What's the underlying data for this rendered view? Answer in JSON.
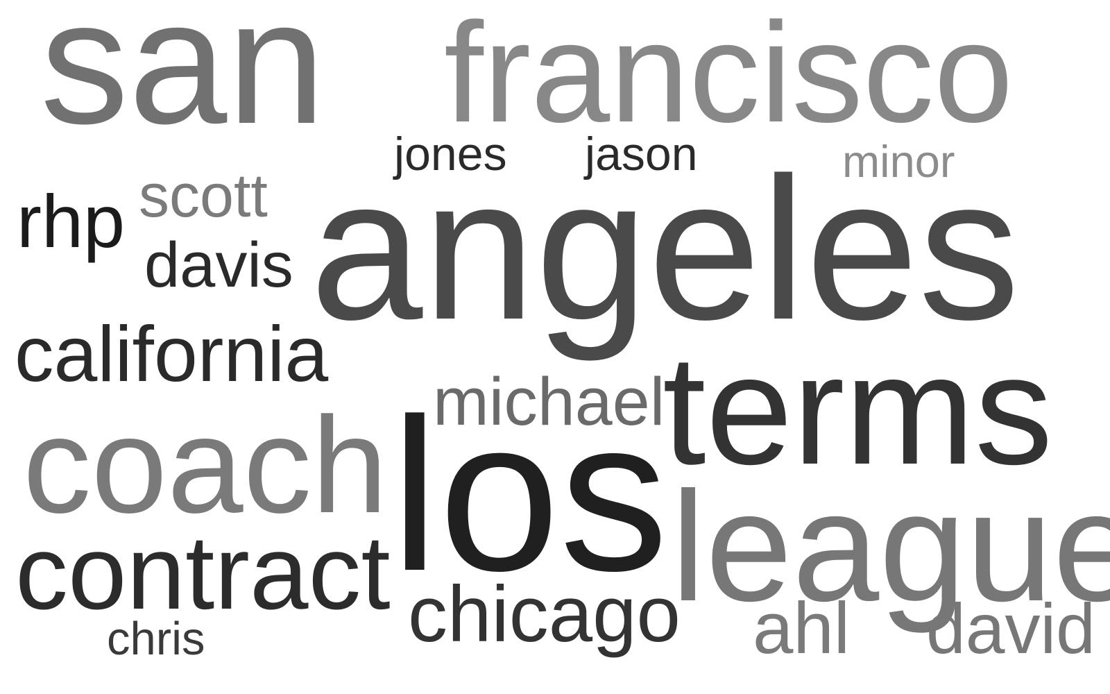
{
  "words": {
    "san": {
      "text": "san",
      "color": "#717171"
    },
    "francisco": {
      "text": "francisco",
      "color": "#888888"
    },
    "jones": {
      "text": "jones",
      "color": "#2a2a2a"
    },
    "jason": {
      "text": "jason",
      "color": "#2a2a2a"
    },
    "minor": {
      "text": "minor",
      "color": "#8c8c8c"
    },
    "rhp": {
      "text": "rhp",
      "color": "#1b1b1b"
    },
    "scott": {
      "text": "scott",
      "color": "#7b7b7b"
    },
    "angeles": {
      "text": "angeles",
      "color": "#4a4a4a"
    },
    "davis": {
      "text": "davis",
      "color": "#2a2a2a"
    },
    "california": {
      "text": "california",
      "color": "#2a2a2a"
    },
    "michael": {
      "text": "michael",
      "color": "#6a6a6a"
    },
    "terms": {
      "text": "terms",
      "color": "#333333"
    },
    "coach": {
      "text": "coach",
      "color": "#7a7a7a"
    },
    "los": {
      "text": "los",
      "color": "#202020"
    },
    "league": {
      "text": "league",
      "color": "#777777"
    },
    "contract": {
      "text": "contract",
      "color": "#2c2c2c"
    },
    "chicago": {
      "text": "chicago",
      "color": "#333333"
    },
    "chris": {
      "text": "chris",
      "color": "#3a3a3a"
    },
    "ahl": {
      "text": "ahl",
      "color": "#7a7a7a"
    },
    "david": {
      "text": "david",
      "color": "#777777"
    }
  }
}
